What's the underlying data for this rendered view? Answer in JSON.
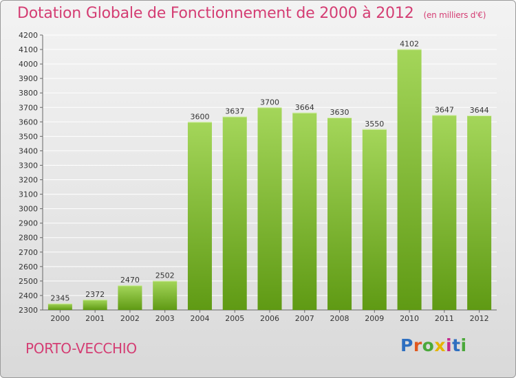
{
  "title": "Dotation Globale de Fonctionnement de 2000 à 2012",
  "unit": "(en milliers d'€)",
  "place": "PORTO-VECCHIO",
  "logo": {
    "letters": [
      "P",
      "r",
      "o",
      "x",
      "i",
      "t",
      "i"
    ],
    "colors": [
      "#2e6fc0",
      "#e0581f",
      "#4aa83a",
      "#e6b400",
      "#c5288c",
      "#2e6fc0",
      "#4aa83a"
    ]
  },
  "colors": {
    "title": "#d43d73",
    "bar_top": "#a4d65a",
    "bar_bottom": "#5f9a14",
    "grid": "#ffffff"
  },
  "chart_data": {
    "type": "bar",
    "categories": [
      "2000",
      "2001",
      "2002",
      "2003",
      "2004",
      "2005",
      "2006",
      "2007",
      "2008",
      "2009",
      "2010",
      "2011",
      "2012"
    ],
    "values": [
      2345,
      2372,
      2470,
      2502,
      3600,
      3637,
      3700,
      3664,
      3630,
      3550,
      4102,
      3647,
      3644
    ],
    "ylim": [
      2300,
      4200
    ],
    "yticks": [
      2300,
      2400,
      2500,
      2600,
      2700,
      2800,
      2900,
      3000,
      3100,
      3200,
      3300,
      3400,
      3500,
      3600,
      3700,
      3800,
      3900,
      4000,
      4100,
      4200
    ],
    "grid": true
  }
}
